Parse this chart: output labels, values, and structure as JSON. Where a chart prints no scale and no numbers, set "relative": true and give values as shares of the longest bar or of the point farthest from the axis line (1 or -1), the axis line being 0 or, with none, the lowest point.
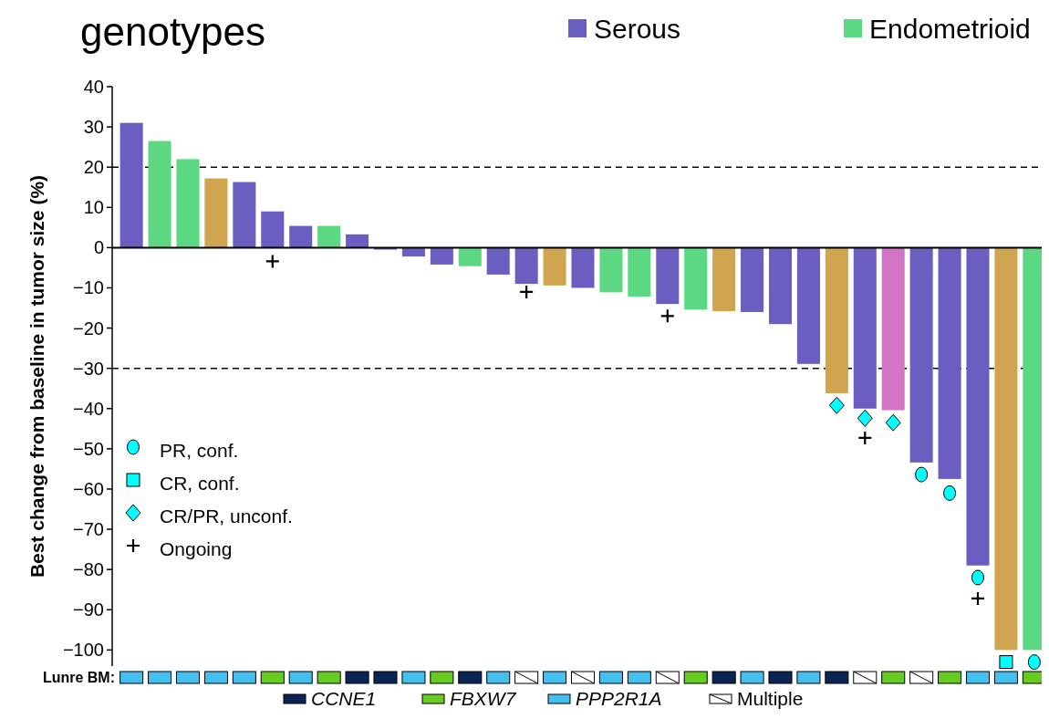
{
  "chart_data": [
    {
      "type": "bar",
      "title": "genotypes",
      "ylabel": "Best change from baseline in tumor size (%)",
      "categories": [
        null,
        null,
        null,
        null,
        null,
        null,
        null,
        null,
        null,
        null,
        null,
        null,
        null,
        null,
        null,
        null,
        null,
        null,
        null,
        null,
        null,
        null,
        null,
        null,
        null,
        null,
        null,
        null,
        null,
        null,
        null,
        null,
        null
      ],
      "series": [
        {
          "name": "Serous",
          "color": "#6a5fc1",
          "values": [
            31,
            null,
            null,
            null,
            16.3,
            9,
            5.4,
            null,
            3.3,
            -0.5,
            -2.2,
            -4.2,
            null,
            -6.7,
            -9,
            null,
            -10,
            null,
            null,
            -14,
            null,
            null,
            -16,
            -19,
            -28.9,
            null,
            -40,
            null,
            -53.4,
            -57.5,
            -79,
            null,
            null
          ]
        },
        {
          "name": "Endometrioid",
          "color": "#5cd883",
          "values": [
            null,
            26.5,
            22,
            null,
            null,
            null,
            null,
            5.4,
            null,
            null,
            null,
            null,
            -4.6,
            null,
            null,
            null,
            null,
            -11.1,
            -12.2,
            null,
            -15.4,
            null,
            null,
            null,
            null,
            null,
            null,
            null,
            null,
            null,
            null,
            null,
            -100
          ]
        },
        {
          "color": "#cfa550",
          "values": [
            null,
            null,
            null,
            17.2,
            null,
            null,
            null,
            null,
            null,
            null,
            null,
            null,
            null,
            null,
            null,
            -9.4,
            null,
            null,
            null,
            null,
            null,
            -15.8,
            null,
            null,
            null,
            -36.2,
            null,
            null,
            null,
            null,
            null,
            -100,
            null
          ]
        },
        {
          "color": "#d375c7",
          "values": [
            null,
            null,
            null,
            null,
            null,
            null,
            null,
            null,
            null,
            null,
            null,
            null,
            null,
            null,
            null,
            null,
            null,
            null,
            null,
            null,
            null,
            null,
            null,
            null,
            null,
            null,
            null,
            -40.4,
            null,
            null,
            null,
            null,
            null
          ]
        },
        {
          "type": "scatter",
          "name": "PR, conf.",
          "marker": "circle",
          "color": "#00ffff",
          "values": [
            null,
            null,
            null,
            null,
            null,
            null,
            null,
            null,
            null,
            null,
            null,
            null,
            null,
            null,
            null,
            null,
            null,
            null,
            null,
            null,
            null,
            null,
            null,
            null,
            null,
            null,
            null,
            null,
            -56.4,
            -61,
            -82,
            null,
            -103
          ]
        },
        {
          "type": "scatter",
          "name": "CR, conf.",
          "marker": "square",
          "color": "#00ffff",
          "values": [
            null,
            null,
            null,
            null,
            null,
            null,
            null,
            null,
            null,
            null,
            null,
            null,
            null,
            null,
            null,
            null,
            null,
            null,
            null,
            null,
            null,
            null,
            null,
            null,
            null,
            null,
            null,
            null,
            null,
            null,
            null,
            -103,
            null
          ]
        },
        {
          "type": "scatter",
          "name": "CR/PR, unconf.",
          "marker": "diamond",
          "color": "#00ffff",
          "values": [
            null,
            null,
            null,
            null,
            null,
            null,
            null,
            null,
            null,
            null,
            null,
            null,
            null,
            null,
            null,
            null,
            null,
            null,
            null,
            null,
            null,
            null,
            null,
            null,
            null,
            -39.2,
            -42.4,
            -43.5,
            null,
            null,
            null,
            null,
            null
          ]
        },
        {
          "type": "scatter",
          "name": "Ongoing",
          "marker": "cross",
          "color": "#000000",
          "values": [
            null,
            null,
            null,
            null,
            null,
            -3.4,
            null,
            null,
            null,
            null,
            null,
            null,
            null,
            null,
            -11,
            null,
            null,
            null,
            null,
            -17,
            null,
            null,
            null,
            null,
            null,
            null,
            -47.3,
            null,
            null,
            null,
            -87.2,
            null,
            null
          ]
        }
      ],
      "ylim": [
        -104,
        40
      ],
      "yticks": [
        40,
        30,
        20,
        10,
        0,
        -10,
        -20,
        -30,
        -40,
        -50,
        -60,
        -70,
        -80,
        -90,
        -100
      ],
      "ref_lines": [
        {
          "axis": "y",
          "value": 20,
          "line_style": "dashed"
        },
        {
          "axis": "y",
          "value": -30,
          "line_style": "dashed"
        }
      ],
      "legend": "top right",
      "grid": false
    },
    {
      "type": "bar",
      "relative": true,
      "ylabel": "Lunre BM:",
      "categories": [
        null,
        null,
        null,
        null,
        null,
        null,
        null,
        null,
        null,
        null,
        null,
        null,
        null,
        null,
        null,
        null,
        null,
        null,
        null,
        null,
        null,
        null,
        null,
        null,
        null,
        null,
        null,
        null,
        null,
        null,
        null,
        null,
        null
      ],
      "series": [
        {
          "name": "CCNE1",
          "color": "#0a2456",
          "values": [
            null,
            null,
            null,
            null,
            null,
            null,
            null,
            null,
            1,
            1,
            null,
            null,
            1,
            null,
            null,
            null,
            null,
            null,
            null,
            null,
            null,
            1,
            null,
            1,
            null,
            1,
            null,
            null,
            null,
            null,
            null,
            null,
            null
          ]
        },
        {
          "name": "FBXW7",
          "color": "#66cc22",
          "values": [
            null,
            null,
            null,
            null,
            null,
            1,
            null,
            1,
            null,
            null,
            null,
            1,
            null,
            null,
            null,
            null,
            null,
            null,
            null,
            null,
            1,
            null,
            null,
            null,
            null,
            null,
            null,
            1,
            null,
            1,
            null,
            null,
            1
          ]
        },
        {
          "name": "PPP2R1A",
          "color": "#45c0ee",
          "values": [
            1,
            1,
            1,
            1,
            1,
            null,
            1,
            null,
            null,
            null,
            1,
            null,
            null,
            1,
            null,
            1,
            null,
            1,
            1,
            null,
            null,
            null,
            1,
            null,
            1,
            null,
            null,
            null,
            null,
            null,
            1,
            1,
            null
          ]
        },
        {
          "name": "Multiple",
          "color": "#ffffff",
          "values": [
            null,
            null,
            null,
            null,
            null,
            null,
            null,
            null,
            null,
            null,
            null,
            null,
            null,
            null,
            1,
            null,
            1,
            null,
            null,
            1,
            null,
            null,
            null,
            null,
            null,
            null,
            1,
            null,
            1,
            null,
            null,
            null,
            null
          ]
        }
      ],
      "legend": "bottom"
    }
  ]
}
